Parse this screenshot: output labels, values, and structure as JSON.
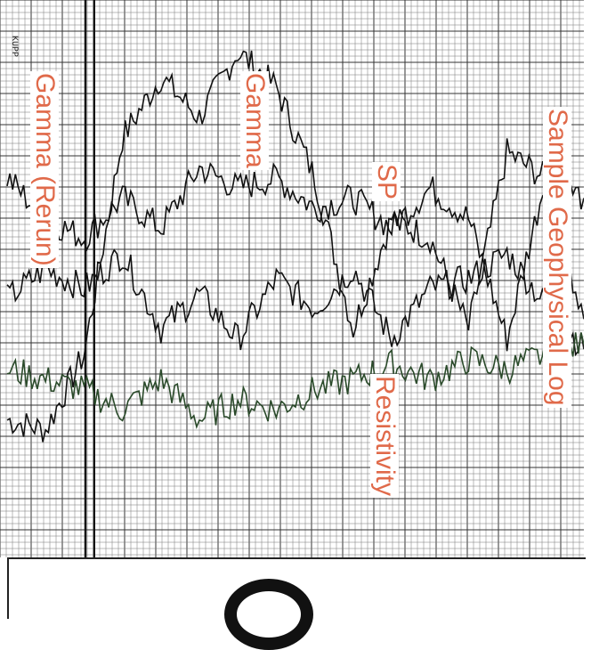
{
  "chart_data": {
    "type": "line",
    "title": "Sample Geophysical Log",
    "annotations": [
      "Gamma (Rerun)",
      "Gamma",
      "SP",
      "Resistivity"
    ],
    "scale_code": "KUPP",
    "series": [
      {
        "name": "Gamma (Rerun)",
        "color": "#111111",
        "values": [
          22,
          20,
          35,
          78,
          90,
          82,
          95,
          88,
          70,
          40,
          62,
          58,
          40,
          75,
          70,
          42
        ]
      },
      {
        "name": "Gamma",
        "color": "#111111",
        "values": [
          70,
          62,
          58,
          66,
          60,
          72,
          68,
          70,
          64,
          66,
          60,
          68,
          62,
          38,
          70,
          66
        ]
      },
      {
        "name": "SP",
        "color": "#111111",
        "values": [
          46,
          52,
          48,
          55,
          40,
          47,
          38,
          50,
          44,
          52,
          38,
          48,
          50,
          55,
          45,
          36
        ]
      },
      {
        "name": "Resistivity",
        "color": "#2a4a2a",
        "values": [
          32,
          30,
          28,
          24,
          30,
          22,
          26,
          24,
          28,
          30,
          33,
          30,
          34,
          32,
          35,
          37
        ]
      }
    ],
    "grid": true
  }
}
